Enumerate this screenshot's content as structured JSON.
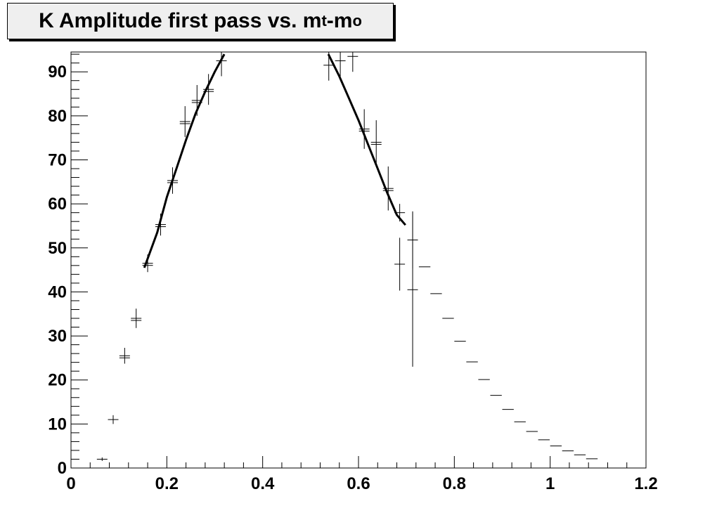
{
  "title": {
    "main": "K Amplitude first pass vs. m",
    "sub1": "t",
    "mid": "-m",
    "sub2": "o"
  },
  "chart_data": {
    "type": "scatter",
    "title": "K Amplitude first pass vs. mt-mo",
    "xlabel": "",
    "ylabel": "",
    "xlim": [
      0,
      1.2
    ],
    "ylim": [
      0,
      94.5
    ],
    "grid": false,
    "legend": "none",
    "x_ticks": [
      "0",
      "0.2",
      "0.4",
      "0.6",
      "0.8",
      "1",
      "1.2"
    ],
    "y_ticks": [
      "0",
      "10",
      "20",
      "30",
      "40",
      "50",
      "60",
      "70",
      "80",
      "90"
    ],
    "series": [
      {
        "points": [
          {
            "x": 0.065,
            "y": 2.0,
            "xerr": 0.011,
            "yerr": 0.4,
            "double": false
          },
          {
            "x": 0.088,
            "y": 11.0,
            "xerr": 0.011,
            "yerr": 1.0,
            "double": false
          },
          {
            "x": 0.112,
            "y": 25.5,
            "xerr": 0.011,
            "yerr": 1.8,
            "double": true
          },
          {
            "x": 0.136,
            "y": 34.0,
            "xerr": 0.011,
            "yerr": 2.2,
            "double": true
          },
          {
            "x": 0.16,
            "y": 46.5,
            "xerr": 0.011,
            "yerr": 2.0,
            "double": true
          },
          {
            "x": 0.187,
            "y": 55.3,
            "xerr": 0.011,
            "yerr": 2.5,
            "double": true
          },
          {
            "x": 0.212,
            "y": 65.3,
            "xerr": 0.011,
            "yerr": 3.0,
            "double": true
          },
          {
            "x": 0.238,
            "y": 78.7,
            "xerr": 0.011,
            "yerr": 3.5,
            "double": true
          },
          {
            "x": 0.263,
            "y": 83.5,
            "xerr": 0.011,
            "yerr": 3.5,
            "double": true
          },
          {
            "x": 0.287,
            "y": 86.0,
            "xerr": 0.011,
            "yerr": 3.5,
            "double": true
          },
          {
            "x": 0.314,
            "y": 92.5,
            "xerr": 0.011,
            "yerr": 3.5,
            "double": false
          },
          {
            "x": 0.538,
            "y": 91.5,
            "xerr": 0.011,
            "yerr": 3.5,
            "double": false
          },
          {
            "x": 0.562,
            "y": 92.5,
            "xerr": 0.011,
            "yerr": 3.5,
            "double": false
          },
          {
            "x": 0.588,
            "y": 93.5,
            "xerr": 0.011,
            "yerr": 3.5,
            "double": false
          },
          {
            "x": 0.612,
            "y": 77.0,
            "xerr": 0.011,
            "yerr": 4.5,
            "double": true
          },
          {
            "x": 0.637,
            "y": 74.0,
            "xerr": 0.011,
            "yerr": 5.0,
            "double": true
          },
          {
            "x": 0.662,
            "y": 63.5,
            "xerr": 0.011,
            "yerr": 5.0,
            "double": true
          },
          {
            "x": 0.686,
            "y": 58.0,
            "xerr": 0.011,
            "yerr": 2.0,
            "double": false
          },
          {
            "x": 0.686,
            "y": 46.3,
            "xerr": 0.011,
            "yerr": 6.0,
            "double": false
          },
          {
            "x": 0.713,
            "y": 51.8,
            "xerr": 0.011,
            "yerr": 6.5,
            "double": false
          },
          {
            "x": 0.713,
            "y": 40.5,
            "xerr": 0.011,
            "yerr": 17.5,
            "double": false
          },
          {
            "x": 0.738,
            "y": 45.7,
            "xerr": 0.012,
            "yerr": 0,
            "double": false
          },
          {
            "x": 0.762,
            "y": 39.6,
            "xerr": 0.012,
            "yerr": 0,
            "double": false
          },
          {
            "x": 0.787,
            "y": 34.0,
            "xerr": 0.012,
            "yerr": 0,
            "double": false
          },
          {
            "x": 0.812,
            "y": 28.8,
            "xerr": 0.012,
            "yerr": 0,
            "double": false
          },
          {
            "x": 0.837,
            "y": 24.1,
            "xerr": 0.012,
            "yerr": 0,
            "double": false
          },
          {
            "x": 0.862,
            "y": 20.1,
            "xerr": 0.012,
            "yerr": 0,
            "double": false
          },
          {
            "x": 0.887,
            "y": 16.5,
            "xerr": 0.012,
            "yerr": 0,
            "double": false
          },
          {
            "x": 0.912,
            "y": 13.3,
            "xerr": 0.012,
            "yerr": 0,
            "double": false
          },
          {
            "x": 0.937,
            "y": 10.5,
            "xerr": 0.012,
            "yerr": 0,
            "double": false
          },
          {
            "x": 0.962,
            "y": 8.3,
            "xerr": 0.012,
            "yerr": 0,
            "double": false
          },
          {
            "x": 0.987,
            "y": 6.4,
            "xerr": 0.012,
            "yerr": 0,
            "double": false
          },
          {
            "x": 1.012,
            "y": 5.0,
            "xerr": 0.012,
            "yerr": 0,
            "double": false
          },
          {
            "x": 1.037,
            "y": 3.9,
            "xerr": 0.012,
            "yerr": 0,
            "double": false
          },
          {
            "x": 1.062,
            "y": 3.0,
            "xerr": 0.012,
            "yerr": 0,
            "double": false
          },
          {
            "x": 1.087,
            "y": 2.1,
            "xerr": 0.012,
            "yerr": 0,
            "double": false
          }
        ]
      },
      {
        "type": "line",
        "x": [
          0.153,
          0.18,
          0.2,
          0.22,
          0.24,
          0.26,
          0.28,
          0.3,
          0.32
        ],
        "y": [
          45.5,
          53.5,
          61.5,
          68.0,
          74.5,
          80.5,
          85.5,
          90.0,
          94.0
        ]
      },
      {
        "type": "line",
        "x": [
          0.537,
          0.56,
          0.58,
          0.6,
          0.62,
          0.64,
          0.66,
          0.68,
          0.698
        ],
        "y": [
          94.0,
          89.0,
          84.0,
          79.0,
          73.5,
          68.0,
          62.5,
          57.5,
          55.2
        ]
      }
    ]
  }
}
